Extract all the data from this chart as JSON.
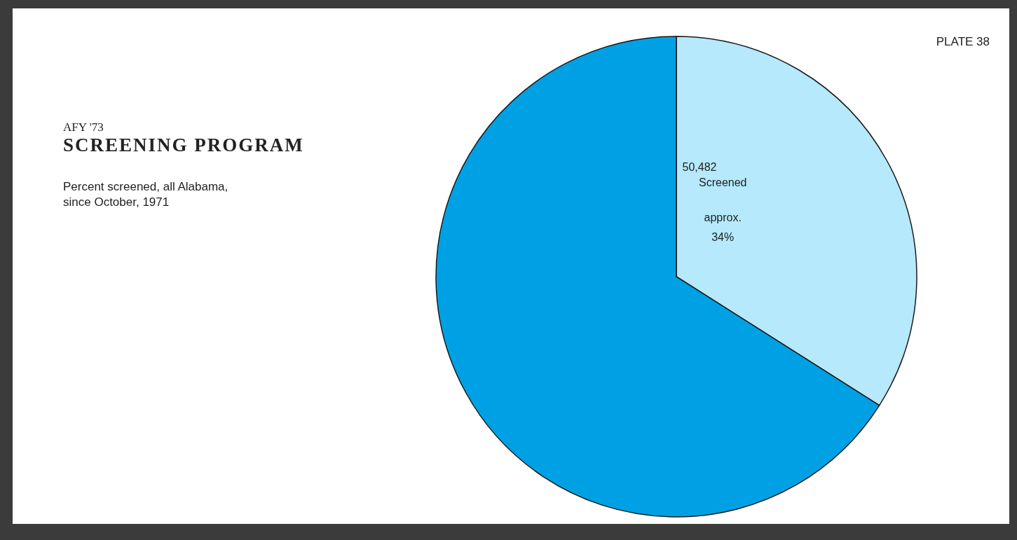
{
  "chart_data": {
    "type": "pie",
    "title": "SCREENING PROGRAM",
    "subtitle": "Percent screened, all Alabama, since October, 1971",
    "annotations": [
      "AFY '73",
      "PLATE 38",
      "50,482"
    ],
    "categories": [
      "Screened",
      null
    ],
    "values": [
      34,
      66
    ],
    "colors": [
      "#b5e9fb",
      "#00a1e4"
    ],
    "value_labels": [
      "approx. 34%",
      null
    ]
  }
}
